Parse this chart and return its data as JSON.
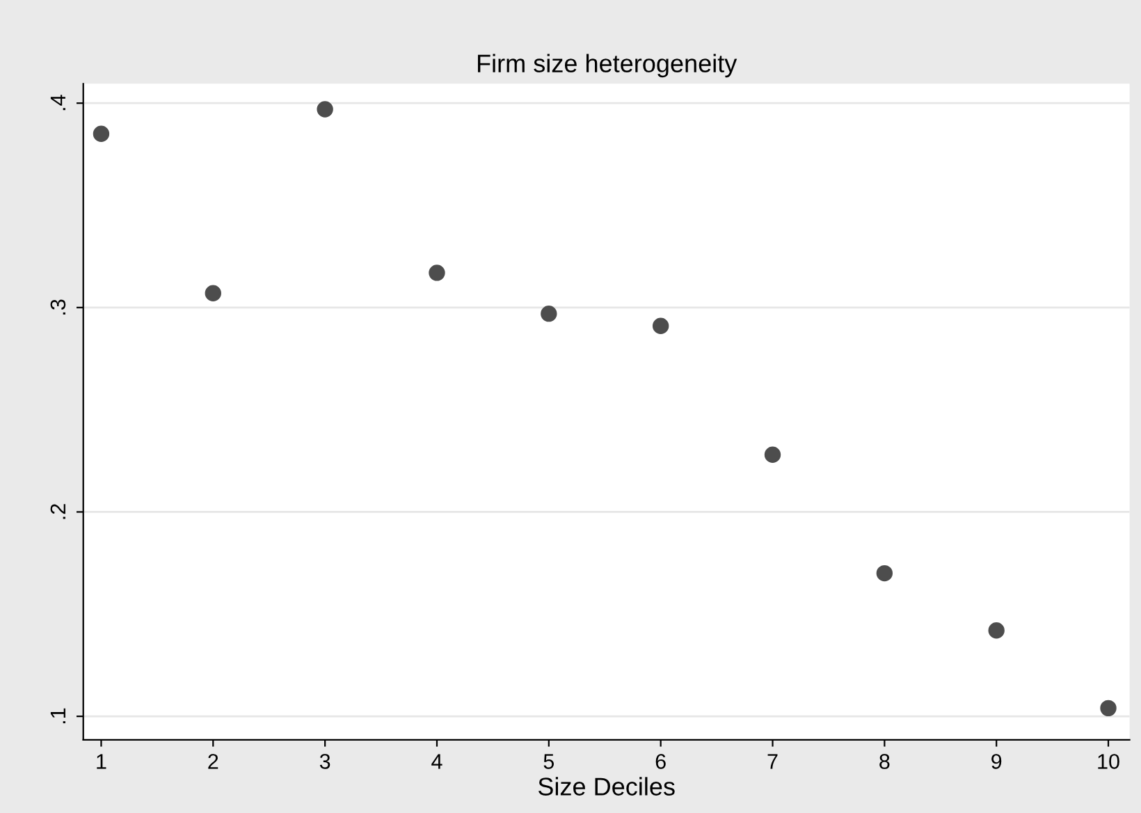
{
  "chart_data": {
    "type": "scatter",
    "title": "Firm size heterogeneity",
    "xlabel": "Size Deciles",
    "x": [
      1,
      2,
      3,
      4,
      5,
      6,
      7,
      8,
      9,
      10
    ],
    "series": [
      {
        "color": "#4d4d4d",
        "values": [
          0.385,
          0.307,
          0.397,
          0.317,
          0.297,
          0.291,
          0.228,
          0.17,
          0.142,
          0.104
        ]
      }
    ],
    "xlim": [
      0.84,
      10.19
    ],
    "ylim": [
      0.0885,
      0.4095
    ],
    "xticks": [
      1,
      2,
      3,
      4,
      5,
      6,
      7,
      8,
      9,
      10
    ],
    "yticks": [
      {
        "value": 0.1,
        "label": ".1"
      },
      {
        "value": 0.2,
        "label": ".2"
      },
      {
        "value": 0.3,
        "label": ".3"
      },
      {
        "value": 0.4,
        "label": ".4"
      }
    ],
    "grid": "y",
    "marker": "circle",
    "legend": false
  }
}
